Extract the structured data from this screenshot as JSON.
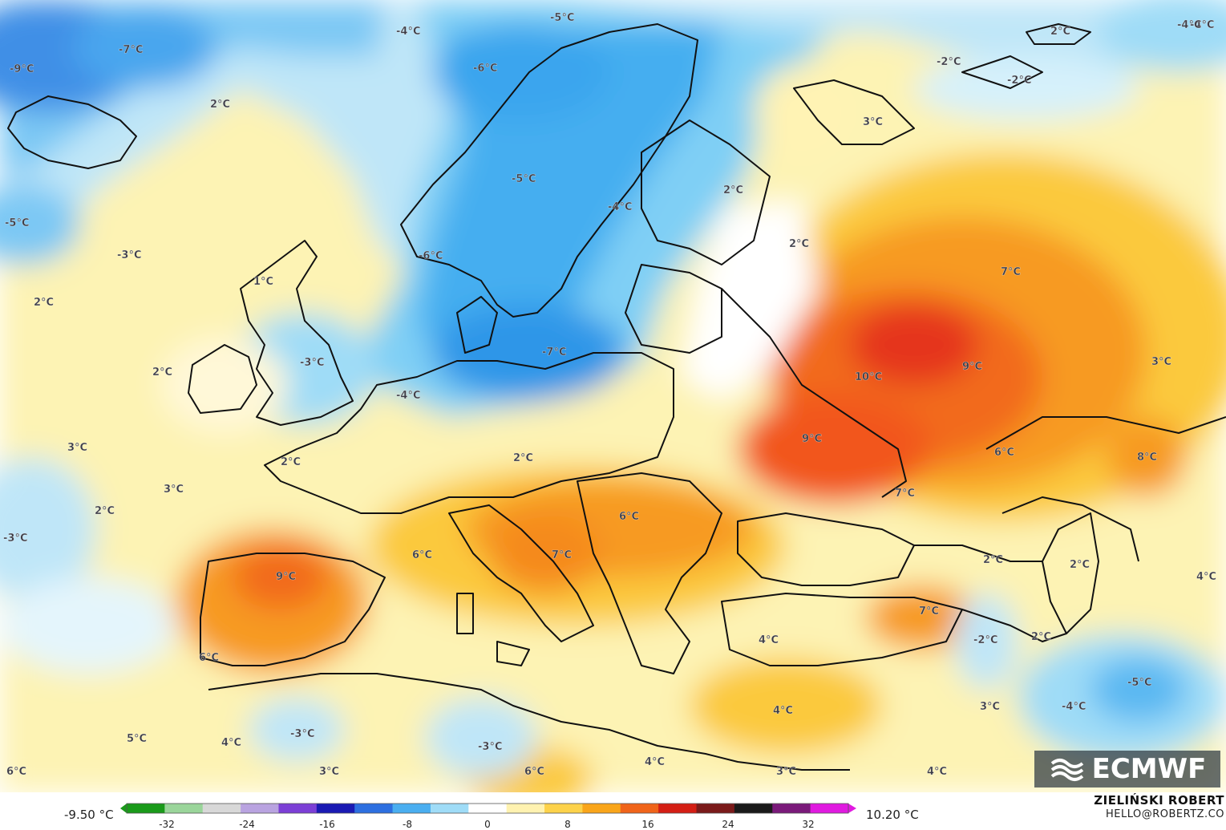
{
  "map": {
    "logo_text": "ECMWF",
    "temperature_labels": [
      {
        "text": "-9°C"
      },
      {
        "text": "-7°C"
      },
      {
        "text": "-4°C"
      },
      {
        "text": "-5°C"
      },
      {
        "text": "-6°C"
      },
      {
        "text": "2°C"
      },
      {
        "text": "-2°C"
      },
      {
        "text": "-2°C"
      },
      {
        "text": "2°C"
      },
      {
        "text": "-4°C"
      },
      {
        "text": "3°C"
      },
      {
        "text": "-5°C"
      },
      {
        "text": "-4°C"
      },
      {
        "text": "2°C"
      },
      {
        "text": "-5°C"
      },
      {
        "text": "2°C"
      },
      {
        "text": "-3°C"
      },
      {
        "text": "-6°C"
      },
      {
        "text": "1°C"
      },
      {
        "text": "2°C"
      },
      {
        "text": "7°C"
      },
      {
        "text": "2°C"
      },
      {
        "text": "-3°C"
      },
      {
        "text": "-7°C"
      },
      {
        "text": "10°C"
      },
      {
        "text": "9°C"
      },
      {
        "text": "3°C"
      },
      {
        "text": "-4°C"
      },
      {
        "text": "3°C"
      },
      {
        "text": "9°C"
      },
      {
        "text": "2°C"
      },
      {
        "text": "2°C"
      },
      {
        "text": "3°C"
      },
      {
        "text": "7°C"
      },
      {
        "text": "6°C"
      },
      {
        "text": "8°C"
      },
      {
        "text": "2°C"
      },
      {
        "text": "6°C"
      },
      {
        "text": "-3°C"
      },
      {
        "text": "6°C"
      },
      {
        "text": "7°C"
      },
      {
        "text": "2°C"
      },
      {
        "text": "9°C"
      },
      {
        "text": "2°C"
      },
      {
        "text": "4°C"
      },
      {
        "text": "7°C"
      },
      {
        "text": "4°C"
      },
      {
        "text": "-2°C"
      },
      {
        "text": "2°C"
      },
      {
        "text": "6°C"
      },
      {
        "text": "-5°C"
      },
      {
        "text": "4°C"
      },
      {
        "text": "3°C"
      },
      {
        "text": "-4°C"
      },
      {
        "text": "5°C"
      },
      {
        "text": "-3°C"
      },
      {
        "text": "4°C"
      },
      {
        "text": "-3°C"
      },
      {
        "text": "4°C"
      },
      {
        "text": "6°C"
      },
      {
        "text": "3°C"
      },
      {
        "text": "6°C"
      },
      {
        "text": "3°C"
      },
      {
        "text": "4°C"
      },
      {
        "text": "-4°C"
      }
    ]
  },
  "legend": {
    "min_label": "-9.50 °C",
    "max_label": "10.20 °C",
    "ticks": [
      "-32",
      "-24",
      "-16",
      "-8",
      "0",
      "8",
      "16",
      "24",
      "32"
    ],
    "colors": [
      "#1a9a1a",
      "#9ad59a",
      "#d8d8d8",
      "#b9a3e0",
      "#7c3fd6",
      "#1a1ab3",
      "#2d6fe0",
      "#4aaef0",
      "#9fdcf7",
      "#ffffff",
      "#fff2b0",
      "#fdd24a",
      "#f9a51a",
      "#f0641a",
      "#d41e14",
      "#7a1a1a",
      "#1a1a1a",
      "#7a1a7a",
      "#e01ae0"
    ],
    "author": "ZIELIŃSKI ROBERT",
    "email": "HELLO@ROBERTZ.CO"
  }
}
